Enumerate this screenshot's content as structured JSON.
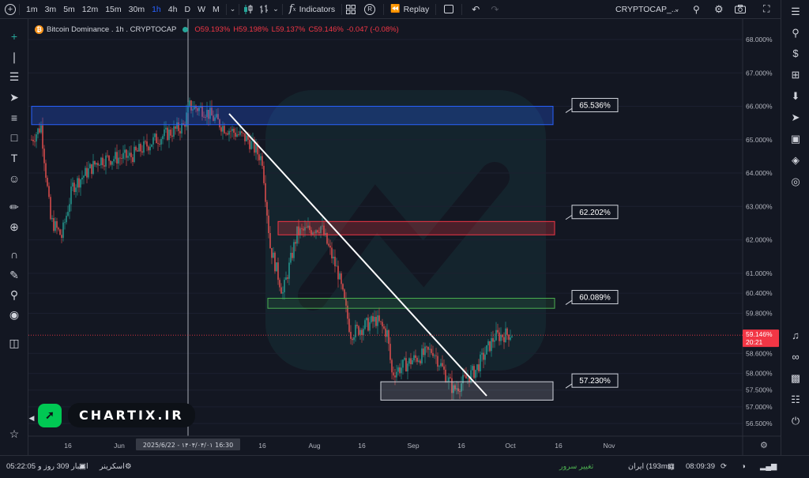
{
  "topbar": {
    "timeframes": [
      "1m",
      "3m",
      "5m",
      "12m",
      "15m",
      "30m",
      "1h",
      "4h",
      "D",
      "W",
      "M"
    ],
    "active_timeframe": "1h",
    "indicators_label": "Indicators",
    "replay_label": "Replay",
    "symbol_label": "CRYPTOCAP_...",
    "r_badge": "R"
  },
  "legend": {
    "title": "Bitcoin Dominance . 1h . CRYPTOCAP",
    "open": "O59.193%",
    "high": "H59.198%",
    "low": "L59.137%",
    "close": "C59.146%",
    "change": "-0.047 (-0.08%)"
  },
  "price_axis": {
    "ticks": [
      "68.000%",
      "67.000%",
      "66.000%",
      "65.000%",
      "64.000%",
      "63.000%",
      "62.000%",
      "61.000%",
      "60.400%",
      "59.800%",
      "58.600%",
      "58.000%",
      "57.500%",
      "57.000%",
      "56.500%"
    ],
    "current_price": "59.146%",
    "countdown": "20:21"
  },
  "time_axis": {
    "ticks": [
      "16",
      "Jun",
      "16",
      "Aug",
      "16",
      "Sep",
      "16",
      "Oct",
      "16",
      "Nov"
    ],
    "crosshair_label": "2025/6/22 - ۱۴۰۴/۰۴/۰۱ 16:30"
  },
  "zones": [
    {
      "label": "65.536%",
      "color": "#2962ff"
    },
    {
      "label": "62.202%",
      "color": "#f23645"
    },
    {
      "label": "60.089%",
      "color": "#4caf50"
    },
    {
      "label": "57.230%",
      "color": "#d1d4dc"
    }
  ],
  "watermark": {
    "logo": "",
    "text": "CHARTIX.IR"
  },
  "bottombar": {
    "time": "05:22:05",
    "credit": "اعتبار 309 روز و",
    "screener": "اسکرینر",
    "change_server": "تغییر سرور",
    "server": "ایران (193ms)",
    "clock": "08:09:39"
  },
  "colors": {
    "bg": "#131722",
    "up": "#26a69a",
    "down": "#ef5350",
    "accent": "#2962ff"
  }
}
